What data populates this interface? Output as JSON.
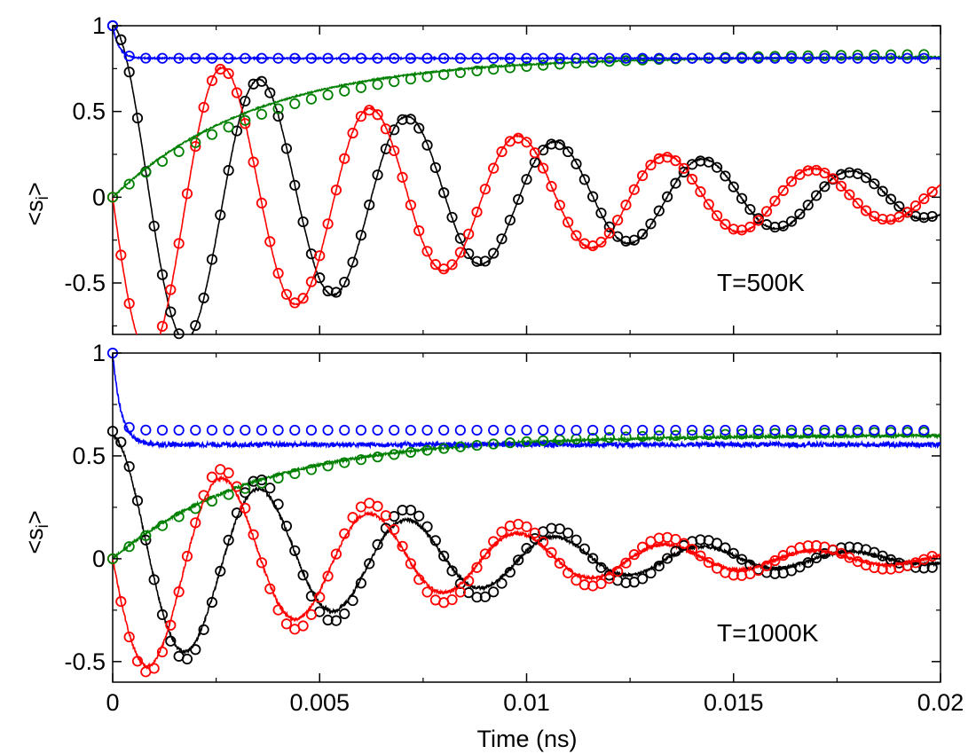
{
  "chart_data": [
    {
      "type": "line",
      "panel": "top",
      "annotation": "T=500K",
      "xlabel": "",
      "ylabel_main": "<s",
      "ylabel_sub": "i",
      "ylabel_end": ">",
      "xlim": [
        0,
        0.02
      ],
      "ylim": [
        -0.8,
        1.0
      ],
      "xticks": [
        0,
        0.005,
        0.01,
        0.015,
        0.02
      ],
      "xtick_labels": [
        "",
        "",
        "",
        "",
        ""
      ],
      "yticks": [
        -0.5,
        0,
        0.5,
        1
      ],
      "ytick_labels": [
        "-0.5",
        "0",
        "0.5",
        "1"
      ],
      "series": [
        {
          "name": "black",
          "color": "#000000",
          "model": "osc",
          "amp": 1.0,
          "phase": 0.0,
          "freq_ns": 280,
          "decay_ns": 0.0095,
          "noise": 0.004
        },
        {
          "name": "red",
          "color": "#ff0000",
          "model": "osc",
          "amp": 1.0,
          "phase": 1.5708,
          "freq_ns": 280,
          "decay_ns": 0.0095,
          "noise": 0.004
        },
        {
          "name": "green",
          "color": "#008000",
          "model": "rise",
          "level": 0.82,
          "tau_ns": 0.0035,
          "noise": 0.004
        },
        {
          "name": "blue",
          "color": "#0000ff",
          "model": "plateau",
          "level": 0.81,
          "tau_ns": 0.00015,
          "noise": 0.004
        }
      ],
      "markers": [
        {
          "name": "black",
          "color": "#000000",
          "model": "osc",
          "amp": 1.0,
          "phase": 0.0,
          "freq_ns": 280,
          "decay_ns": 0.0092,
          "dt_ns": 0.0002
        },
        {
          "name": "red",
          "color": "#ff0000",
          "model": "osc",
          "amp": 1.0,
          "phase": 1.5708,
          "freq_ns": 280,
          "decay_ns": 0.0092,
          "dt_ns": 0.0002
        },
        {
          "name": "green",
          "color": "#008000",
          "model": "rise",
          "level": 0.84,
          "tau_ns": 0.0042,
          "dt_ns": 0.0004
        },
        {
          "name": "blue",
          "color": "#0000ff",
          "model": "plateau",
          "level": 0.81,
          "tau_ns": 0.00015,
          "dt_ns": 0.0004
        }
      ]
    },
    {
      "type": "line",
      "panel": "bottom",
      "annotation": "T=1000K",
      "xlabel": "Time (ns)",
      "ylabel_main": "<s",
      "ylabel_sub": "i",
      "ylabel_end": ">",
      "xlim": [
        0,
        0.02
      ],
      "ylim": [
        -0.6,
        1.0
      ],
      "xticks": [
        0,
        0.005,
        0.01,
        0.015,
        0.02
      ],
      "xtick_labels": [
        "0",
        "0.005",
        "0.01",
        "0.015",
        "0.02"
      ],
      "yticks": [
        -0.5,
        0,
        0.5,
        1
      ],
      "ytick_labels": [
        "-0.5",
        "0",
        "0.5",
        "1"
      ],
      "series": [
        {
          "name": "black",
          "color": "#000000",
          "model": "osc",
          "amp": 0.6,
          "phase": 0.0,
          "freq_ns": 280,
          "decay_ns": 0.0062,
          "noise": 0.008
        },
        {
          "name": "red",
          "color": "#ff0000",
          "model": "osc",
          "amp": 0.6,
          "phase": 1.5708,
          "freq_ns": 280,
          "decay_ns": 0.0062,
          "noise": 0.008
        },
        {
          "name": "green",
          "color": "#008000",
          "model": "rise",
          "level": 0.6,
          "tau_ns": 0.0035,
          "noise": 0.006
        },
        {
          "name": "blue",
          "color": "#0000ff",
          "model": "plateau",
          "level": 0.555,
          "tau_ns": 0.0002,
          "noise": 0.012
        }
      ],
      "markers": [
        {
          "name": "black",
          "color": "#000000",
          "model": "osc",
          "amp": 0.62,
          "phase": 0.0,
          "freq_ns": 280,
          "decay_ns": 0.0075,
          "dt_ns": 0.0002
        },
        {
          "name": "red",
          "color": "#ff0000",
          "model": "osc",
          "amp": 0.62,
          "phase": 1.5708,
          "freq_ns": 280,
          "decay_ns": 0.0075,
          "dt_ns": 0.0002
        },
        {
          "name": "green",
          "color": "#008000",
          "model": "rise",
          "level": 0.62,
          "tau_ns": 0.004,
          "dt_ns": 0.0004
        },
        {
          "name": "blue",
          "color": "#0000ff",
          "model": "plateau",
          "level": 0.625,
          "tau_ns": 0.00012,
          "dt_ns": 0.0004
        }
      ]
    }
  ]
}
